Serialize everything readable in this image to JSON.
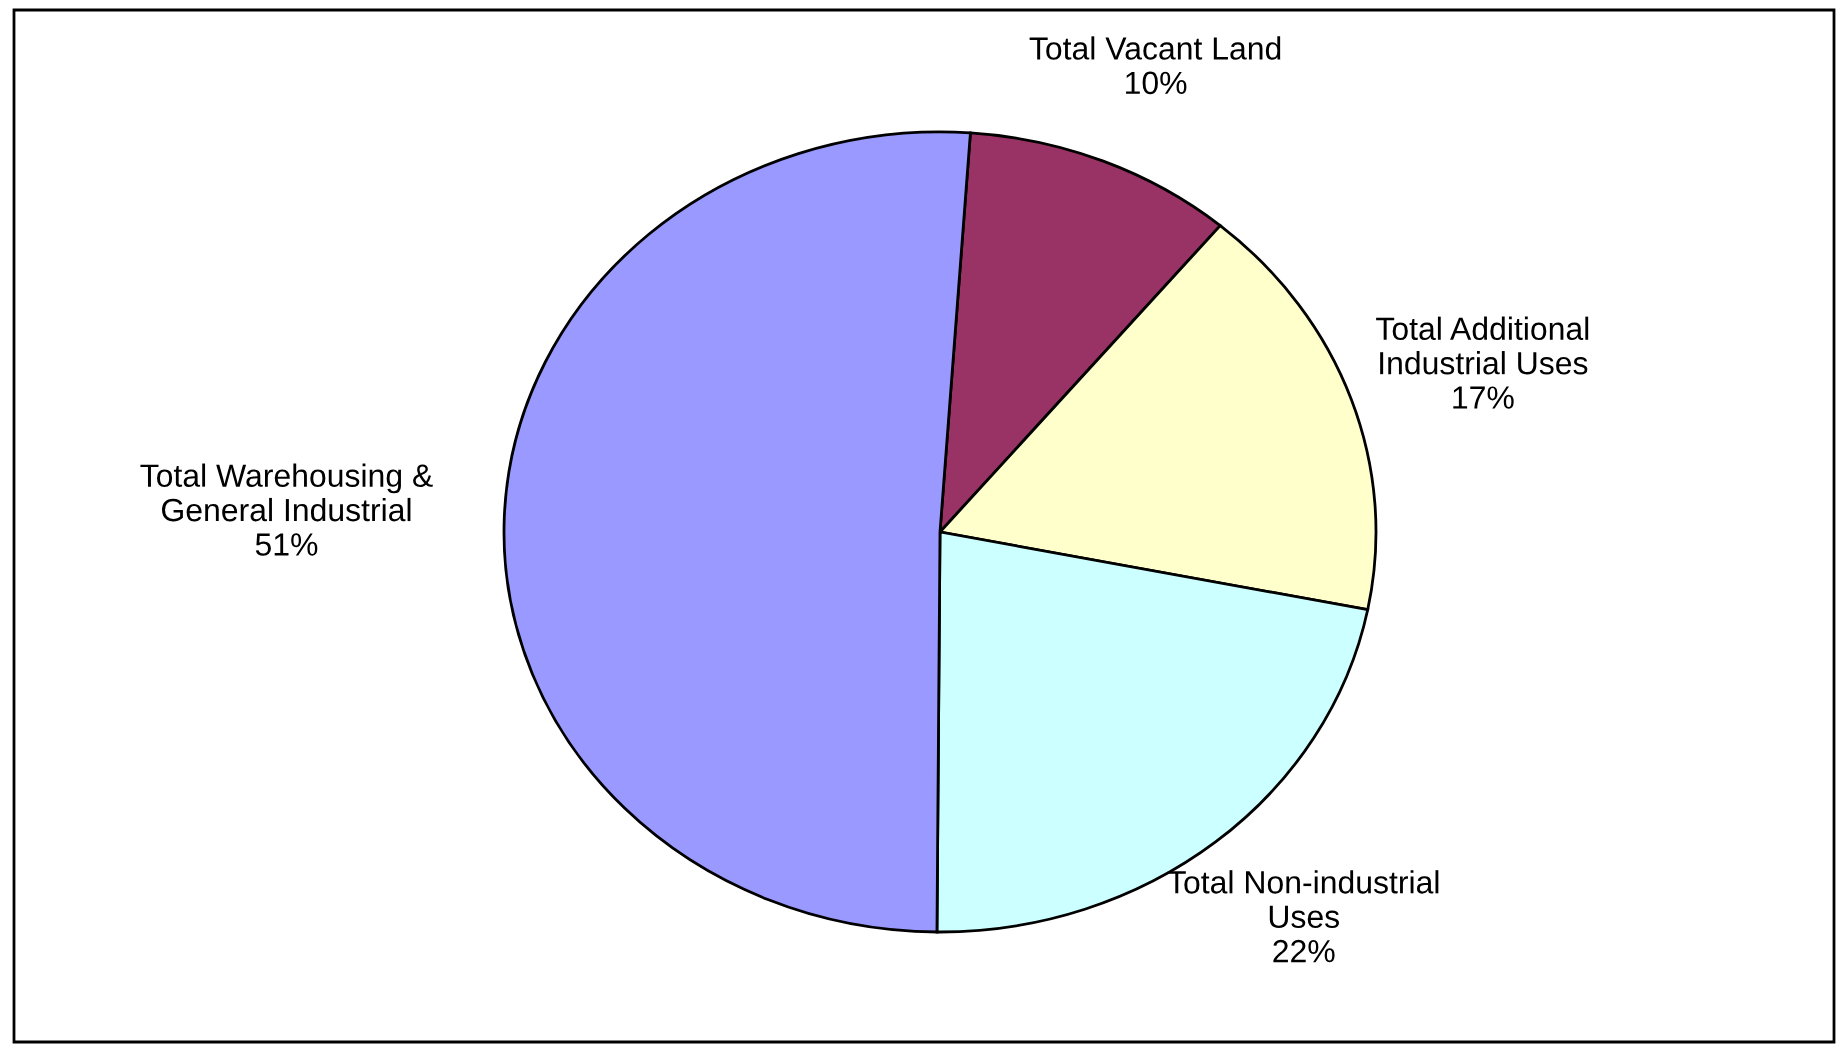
{
  "chart_data": {
    "type": "pie",
    "categories": [
      "Total Vacant Land",
      "Total Additional Industrial Uses",
      "Total Non-industrial Uses",
      "Total Warehousing & General Industrial"
    ],
    "values": [
      10,
      17,
      22,
      51
    ],
    "colors": [
      "#993366",
      "#ffffcc",
      "#ccffff",
      "#9999ff"
    ],
    "value_labels": [
      "10%",
      "17%",
      "22%",
      "51%"
    ]
  }
}
